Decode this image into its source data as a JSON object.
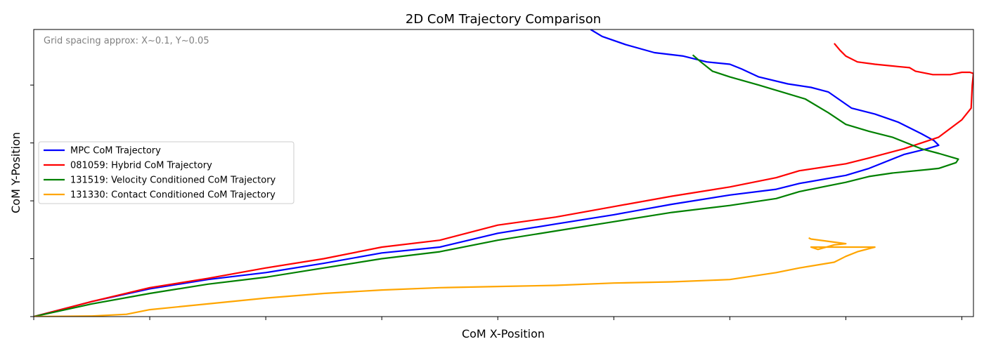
{
  "chart_data": {
    "type": "line",
    "title": "2D CoM Trajectory Comparison",
    "xlabel": "CoM X-Position",
    "ylabel": "CoM Y-Position",
    "annotation": "Grid spacing approx: X~0.1, Y~0.05",
    "xlim": [
      0,
      0.81
    ],
    "ylim": [
      0,
      0.248
    ],
    "x_ticks": [
      0.0,
      0.1,
      0.2,
      0.3,
      0.4,
      0.5,
      0.6,
      0.7,
      0.8
    ],
    "y_ticks": [
      0.0,
      0.05,
      0.1,
      0.15,
      0.2
    ],
    "tick_labels_shown": false,
    "grid": false,
    "legend_position": "center-left",
    "series": [
      {
        "name": "MPC CoM Trajectory",
        "color": "#0000ff",
        "points": [
          [
            0,
            0
          ],
          [
            0.05,
            0.013
          ],
          [
            0.1,
            0.024
          ],
          [
            0.15,
            0.032
          ],
          [
            0.2,
            0.038
          ],
          [
            0.25,
            0.046
          ],
          [
            0.3,
            0.055
          ],
          [
            0.35,
            0.06
          ],
          [
            0.4,
            0.072
          ],
          [
            0.45,
            0.08
          ],
          [
            0.5,
            0.088
          ],
          [
            0.55,
            0.097
          ],
          [
            0.6,
            0.105
          ],
          [
            0.64,
            0.11
          ],
          [
            0.66,
            0.115
          ],
          [
            0.7,
            0.122
          ],
          [
            0.72,
            0.128
          ],
          [
            0.75,
            0.14
          ],
          [
            0.77,
            0.145
          ],
          [
            0.78,
            0.148
          ],
          [
            0.776,
            0.152
          ],
          [
            0.765,
            0.158
          ],
          [
            0.745,
            0.168
          ],
          [
            0.725,
            0.175
          ],
          [
            0.705,
            0.18
          ],
          [
            0.685,
            0.194
          ],
          [
            0.67,
            0.198
          ],
          [
            0.65,
            0.201
          ],
          [
            0.625,
            0.207
          ],
          [
            0.61,
            0.214
          ],
          [
            0.6,
            0.218
          ],
          [
            0.58,
            0.22
          ],
          [
            0.56,
            0.225
          ],
          [
            0.535,
            0.228
          ],
          [
            0.51,
            0.235
          ],
          [
            0.49,
            0.242
          ],
          [
            0.48,
            0.248
          ]
        ]
      },
      {
        "name": "081059: Hybrid CoM Trajectory",
        "color": "#ff0000",
        "points": [
          [
            0,
            0
          ],
          [
            0.05,
            0.013
          ],
          [
            0.1,
            0.025
          ],
          [
            0.15,
            0.033
          ],
          [
            0.2,
            0.042
          ],
          [
            0.25,
            0.05
          ],
          [
            0.3,
            0.06
          ],
          [
            0.35,
            0.066
          ],
          [
            0.4,
            0.079
          ],
          [
            0.45,
            0.086
          ],
          [
            0.5,
            0.095
          ],
          [
            0.55,
            0.104
          ],
          [
            0.6,
            0.112
          ],
          [
            0.64,
            0.12
          ],
          [
            0.66,
            0.126
          ],
          [
            0.7,
            0.132
          ],
          [
            0.72,
            0.137
          ],
          [
            0.75,
            0.145
          ],
          [
            0.78,
            0.155
          ],
          [
            0.8,
            0.17
          ],
          [
            0.808,
            0.18
          ],
          [
            0.809,
            0.2
          ],
          [
            0.81,
            0.21
          ],
          [
            0.807,
            0.211
          ],
          [
            0.8,
            0.211
          ],
          [
            0.795,
            0.21
          ],
          [
            0.79,
            0.209
          ],
          [
            0.775,
            0.209
          ],
          [
            0.76,
            0.212
          ],
          [
            0.755,
            0.215
          ],
          [
            0.745,
            0.216
          ],
          [
            0.725,
            0.218
          ],
          [
            0.71,
            0.22
          ],
          [
            0.7,
            0.225
          ],
          [
            0.695,
            0.23
          ],
          [
            0.69,
            0.236
          ]
        ]
      },
      {
        "name": "131519: Velocity Conditioned CoM Trajectory",
        "color": "#008000",
        "points": [
          [
            0,
            0
          ],
          [
            0.05,
            0.011
          ],
          [
            0.1,
            0.02
          ],
          [
            0.15,
            0.028
          ],
          [
            0.2,
            0.034
          ],
          [
            0.25,
            0.042
          ],
          [
            0.3,
            0.05
          ],
          [
            0.35,
            0.056
          ],
          [
            0.4,
            0.066
          ],
          [
            0.45,
            0.074
          ],
          [
            0.5,
            0.082
          ],
          [
            0.55,
            0.09
          ],
          [
            0.6,
            0.096
          ],
          [
            0.64,
            0.102
          ],
          [
            0.66,
            0.108
          ],
          [
            0.7,
            0.116
          ],
          [
            0.72,
            0.121
          ],
          [
            0.74,
            0.124
          ],
          [
            0.77,
            0.127
          ],
          [
            0.78,
            0.128
          ],
          [
            0.795,
            0.133
          ],
          [
            0.797,
            0.136
          ],
          [
            0.78,
            0.141
          ],
          [
            0.765,
            0.145
          ],
          [
            0.74,
            0.155
          ],
          [
            0.72,
            0.16
          ],
          [
            0.7,
            0.166
          ],
          [
            0.685,
            0.176
          ],
          [
            0.665,
            0.188
          ],
          [
            0.645,
            0.194
          ],
          [
            0.625,
            0.2
          ],
          [
            0.6,
            0.207
          ],
          [
            0.585,
            0.212
          ],
          [
            0.575,
            0.22
          ],
          [
            0.568,
            0.226
          ]
        ]
      },
      {
        "name": "131330: Contact Conditioned CoM Trajectory",
        "color": "#ffa500",
        "points": [
          [
            0,
            0
          ],
          [
            0.05,
            0.0005
          ],
          [
            0.08,
            0.002
          ],
          [
            0.1,
            0.006
          ],
          [
            0.15,
            0.011
          ],
          [
            0.2,
            0.016
          ],
          [
            0.25,
            0.02
          ],
          [
            0.3,
            0.023
          ],
          [
            0.35,
            0.025
          ],
          [
            0.4,
            0.026
          ],
          [
            0.45,
            0.027
          ],
          [
            0.5,
            0.029
          ],
          [
            0.55,
            0.03
          ],
          [
            0.6,
            0.032
          ],
          [
            0.64,
            0.038
          ],
          [
            0.66,
            0.042
          ],
          [
            0.69,
            0.047
          ],
          [
            0.7,
            0.052
          ],
          [
            0.71,
            0.056
          ],
          [
            0.725,
            0.06
          ],
          [
            0.67,
            0.06
          ],
          [
            0.676,
            0.058
          ],
          [
            0.69,
            0.062
          ],
          [
            0.7,
            0.063
          ],
          [
            0.67,
            0.067
          ],
          [
            0.668,
            0.068
          ]
        ]
      }
    ]
  }
}
